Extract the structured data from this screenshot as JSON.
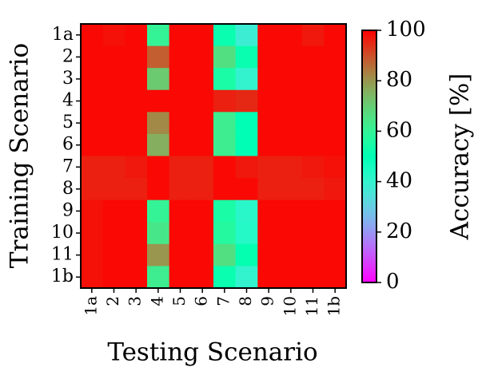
{
  "chart_data": {
    "type": "heatmap",
    "xlabel": "Testing Scenario",
    "ylabel": "Training Scenario",
    "x_categories": [
      "1a",
      "2",
      "3",
      "4",
      "5",
      "6",
      "7",
      "8",
      "9",
      "10",
      "11",
      "1b"
    ],
    "y_categories": [
      "1a",
      "2",
      "3",
      "4",
      "5",
      "6",
      "7",
      "8",
      "9",
      "10",
      "11",
      "1b"
    ],
    "values": [
      [
        99,
        98,
        99,
        60,
        99,
        99,
        52,
        38,
        99,
        99,
        97,
        99
      ],
      [
        99,
        99,
        99,
        88,
        99,
        99,
        66,
        52,
        99,
        99,
        99,
        99
      ],
      [
        99,
        99,
        99,
        71,
        99,
        99,
        55,
        40,
        99,
        99,
        99,
        99
      ],
      [
        99,
        99,
        99,
        99,
        99,
        99,
        96,
        95,
        99,
        99,
        99,
        99
      ],
      [
        99,
        99,
        99,
        82,
        99,
        99,
        62,
        50,
        99,
        99,
        99,
        99
      ],
      [
        99,
        99,
        99,
        76,
        99,
        99,
        62,
        50,
        99,
        99,
        99,
        99
      ],
      [
        96,
        96,
        97,
        99,
        96,
        96,
        99,
        97,
        96,
        96,
        97,
        98
      ],
      [
        96,
        96,
        96,
        99,
        96,
        96,
        99,
        99,
        96,
        96,
        96,
        97
      ],
      [
        98,
        99,
        99,
        60,
        99,
        99,
        55,
        42,
        99,
        99,
        99,
        99
      ],
      [
        98,
        99,
        99,
        64,
        99,
        99,
        57,
        43,
        99,
        99,
        99,
        99
      ],
      [
        98,
        99,
        99,
        80,
        99,
        99,
        66,
        51,
        99,
        99,
        99,
        99
      ],
      [
        98,
        99,
        99,
        62,
        99,
        99,
        52,
        40,
        99,
        99,
        99,
        99
      ]
    ],
    "colorbar": {
      "label": "Accuracy [%]",
      "range": [
        0,
        100
      ],
      "ticks": [
        "0",
        "20",
        "40",
        "60",
        "80",
        "100"
      ],
      "colormap": "rainbow"
    }
  }
}
